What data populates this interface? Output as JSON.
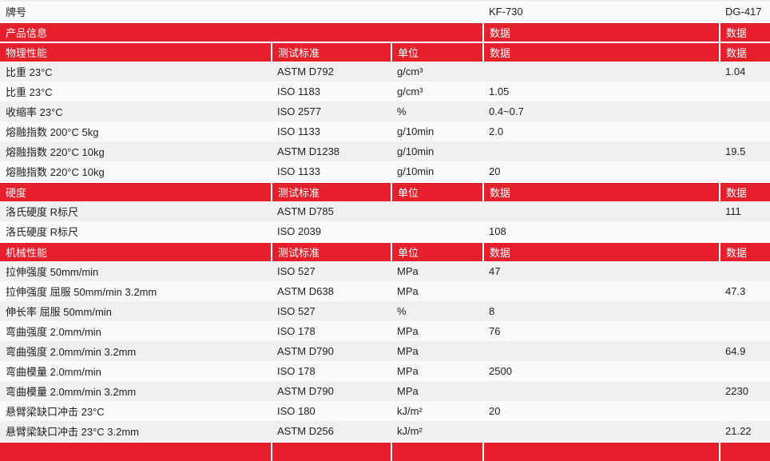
{
  "header": {
    "label": "牌号",
    "grades": [
      "KF-730",
      "DG-417"
    ]
  },
  "info_row": {
    "label": "产品信息",
    "col4": "数据",
    "col5": "数据"
  },
  "accent_color": "#e6202a",
  "sections": [
    {
      "title": "物理性能",
      "std": "测试标准",
      "unit": "单位",
      "d1": "数据",
      "d2": "数据",
      "rows": [
        [
          "比重   23°C",
          "ASTM D792",
          "g/cm³",
          "",
          "1.04"
        ],
        [
          "比重   23°C",
          "ISO 1183",
          "g/cm³",
          "1.05",
          ""
        ],
        [
          "收缩率   23°C",
          "ISO 2577",
          "%",
          "0.4~0.7",
          ""
        ],
        [
          "熔融指数   200°C 5kg",
          "ISO 1133",
          "g/10min",
          "2.0",
          ""
        ],
        [
          "熔融指数   220°C 10kg",
          "ASTM D1238",
          "g/10min",
          "",
          "19.5"
        ],
        [
          "熔融指数   220°C 10kg",
          "ISO 1133",
          "g/10min",
          "20",
          ""
        ]
      ]
    },
    {
      "title": "硬度",
      "std": "测试标准",
      "unit": "单位",
      "d1": "数据",
      "d2": "数据",
      "rows": [
        [
          "洛氏硬度   R标尺",
          "ASTM D785",
          "",
          "",
          "111"
        ],
        [
          "洛氏硬度   R标尺",
          "ISO 2039",
          "",
          "108",
          ""
        ]
      ]
    },
    {
      "title": "机械性能",
      "std": "测试标准",
      "unit": "单位",
      "d1": "数据",
      "d2": "数据",
      "rows": [
        [
          "拉伸强度   50mm/min",
          "ISO 527",
          "MPa",
          "47",
          ""
        ],
        [
          "拉伸强度   屈服 50mm/min 3.2mm",
          "ASTM D638",
          "MPa",
          "",
          "47.3"
        ],
        [
          "伸长率   屈服 50mm/min",
          "ISO 527",
          "%",
          "8",
          ""
        ],
        [
          "弯曲强度   2.0mm/min",
          "ISO 178",
          "MPa",
          "76",
          ""
        ],
        [
          "弯曲强度   2.0mm/min 3.2mm",
          "ASTM D790",
          "MPa",
          "",
          "64.9"
        ],
        [
          "弯曲模量   2.0mm/min",
          "ISO 178",
          "MPa",
          "2500",
          ""
        ],
        [
          "弯曲模量   2.0mm/min 3.2mm",
          "ASTM D790",
          "MPa",
          "",
          "2230"
        ],
        [
          "悬臂梁缺口冲击   23°C",
          "ISO 180",
          "kJ/m²",
          "20",
          ""
        ],
        [
          "悬臂梁缺口冲击   23°C 3.2mm",
          "ASTM D256",
          "kJ/m²",
          "",
          "21.22"
        ]
      ]
    }
  ]
}
